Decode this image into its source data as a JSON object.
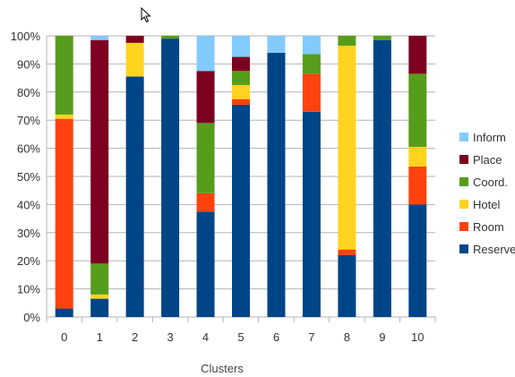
{
  "chart_data": {
    "type": "bar",
    "stacked": true,
    "percent": true,
    "categories": [
      "0",
      "1",
      "2",
      "3",
      "4",
      "5",
      "6",
      "7",
      "8",
      "9",
      "10"
    ],
    "xlabel": "Clusters",
    "ylabel": "",
    "ylim": [
      0,
      100
    ],
    "yticks": [
      "0%",
      "10%",
      "20%",
      "30%",
      "40%",
      "50%",
      "60%",
      "70%",
      "80%",
      "90%",
      "100%"
    ],
    "grid": true,
    "legend_position": "right",
    "series": [
      {
        "name": "Reserve",
        "color": "#004586",
        "values": [
          3,
          6.5,
          85.5,
          99,
          37.5,
          75.5,
          94,
          73,
          22,
          98.5,
          40
        ]
      },
      {
        "name": "Room",
        "color": "#ff420e",
        "values": [
          67.5,
          0,
          0,
          0,
          6.5,
          2,
          0,
          13.5,
          2,
          0,
          13.5
        ]
      },
      {
        "name": "Hotel",
        "color": "#ffd320",
        "values": [
          1.5,
          1.5,
          12,
          0,
          0,
          5,
          0,
          0,
          72.5,
          0,
          7
        ]
      },
      {
        "name": "Coord.",
        "color": "#579d1c",
        "values": [
          28,
          11,
          0,
          1,
          25,
          5,
          0,
          7,
          3.5,
          1.5,
          26
        ]
      },
      {
        "name": "Place",
        "color": "#7e0021",
        "values": [
          0,
          79.5,
          2.5,
          0,
          18.5,
          5,
          0,
          0,
          0,
          0,
          13.5
        ]
      },
      {
        "name": "Inform",
        "color": "#83caff",
        "values": [
          0,
          1.5,
          0,
          0,
          12.5,
          7.5,
          6,
          6.5,
          0,
          0,
          0
        ]
      }
    ]
  },
  "legend_order": [
    "Inform",
    "Place",
    "Coord.",
    "Hotel",
    "Room",
    "Reserve"
  ],
  "colors": {
    "grid": "#b3b3b3",
    "axis": "#b3b3b3",
    "text": "#333333"
  },
  "cursor_icon": "mouse-pointer-icon"
}
